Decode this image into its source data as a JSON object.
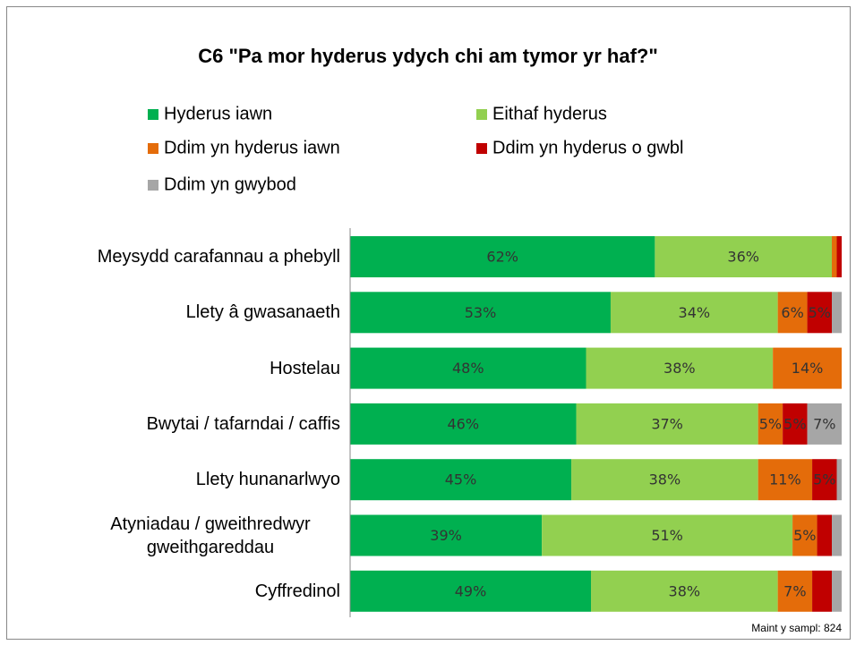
{
  "chart_data": {
    "type": "stacked_barh",
    "title": "C6 \"Pa mor hyderus ydych chi am tymor yr haf?\"",
    "note": "Maint y sampl: 824",
    "categories": [
      "Meysydd carafannau a phebyll",
      "Llety â gwasanaeth",
      "Hostelau",
      "Bwytai / tafarndai / caffis",
      "Llety hunanarlwyo",
      "Atyniadau / gweithredwyr gweithgareddau",
      "Cyffredinol"
    ],
    "xlim": [
      0,
      100
    ],
    "series": [
      {
        "name": "Hyderus iawn",
        "color": "#00b050",
        "values": [
          62,
          53,
          48,
          46,
          45,
          39,
          49
        ],
        "value_labels": [
          "62%",
          "53%",
          "48%",
          "46%",
          "45%",
          "39%",
          "49%"
        ]
      },
      {
        "name": "Eithaf hyderus",
        "color": "#92d050",
        "values": [
          36,
          34,
          38,
          37,
          38,
          51,
          38
        ],
        "value_labels": [
          "36%",
          "34%",
          "38%",
          "37%",
          "38%",
          "51%",
          "38%"
        ]
      },
      {
        "name": "Ddim yn hyderus iawn",
        "color": "#e46c0a",
        "values": [
          1,
          6,
          14,
          5,
          11,
          5,
          7
        ],
        "value_labels": [
          null,
          "6%",
          "14%",
          "5%",
          "11%",
          "5%",
          "7%"
        ]
      },
      {
        "name": "Ddim yn hyderus o gwbl",
        "color": "#c00000",
        "values": [
          1,
          5,
          0,
          5,
          5,
          3,
          4
        ],
        "value_labels": [
          null,
          "5%",
          null,
          "5%",
          "5%",
          null,
          null
        ]
      },
      {
        "name": "Ddim yn gwybod",
        "color": "#a6a6a6",
        "values": [
          0,
          2,
          0,
          7,
          1,
          2,
          2
        ],
        "value_labels": [
          null,
          null,
          null,
          "7%",
          null,
          null,
          null
        ]
      }
    ]
  }
}
